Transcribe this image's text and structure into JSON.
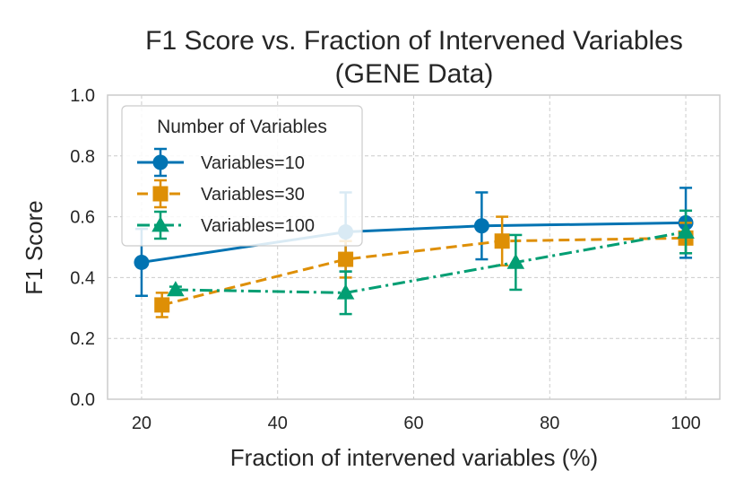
{
  "chart_data": {
    "type": "line",
    "title": "F1 Score vs. Fraction of Intervened Variables",
    "subtitle": "(GENE Data)",
    "xlabel": "Fraction of intervened variables (%)",
    "ylabel": "F1 Score",
    "xlim": [
      15,
      105
    ],
    "ylim": [
      0.0,
      1.0
    ],
    "xticks": [
      "20",
      "40",
      "60",
      "80",
      "100"
    ],
    "yticks": [
      "0.0",
      "0.2",
      "0.4",
      "0.6",
      "0.8",
      "1.0"
    ],
    "xtick_values": [
      20,
      40,
      60,
      80,
      100
    ],
    "ytick_values": [
      0.0,
      0.2,
      0.4,
      0.6,
      0.8,
      1.0
    ],
    "grid": true,
    "legend": {
      "title": "Number of Variables",
      "position": "upper-left"
    },
    "series": [
      {
        "name": "Variables=10",
        "color": "#0173b2",
        "linestyle": "solid",
        "marker": "circle",
        "x": [
          20,
          50,
          70,
          100
        ],
        "y": [
          0.45,
          0.55,
          0.57,
          0.58
        ],
        "err": [
          0.11,
          0.13,
          0.11,
          0.115
        ]
      },
      {
        "name": "Variables=30",
        "color": "#de8f05",
        "linestyle": "dashed",
        "marker": "square",
        "x": [
          23,
          50,
          73,
          100
        ],
        "y": [
          0.31,
          0.46,
          0.52,
          0.53
        ],
        "err": [
          0.04,
          0.06,
          0.08,
          0.05
        ]
      },
      {
        "name": "Variables=100",
        "color": "#029e73",
        "linestyle": "dashdot",
        "marker": "triangle",
        "x": [
          25,
          50,
          75,
          100
        ],
        "y": [
          0.36,
          0.35,
          0.45,
          0.55
        ],
        "err": [
          0.01,
          0.07,
          0.09,
          0.07
        ]
      }
    ]
  }
}
